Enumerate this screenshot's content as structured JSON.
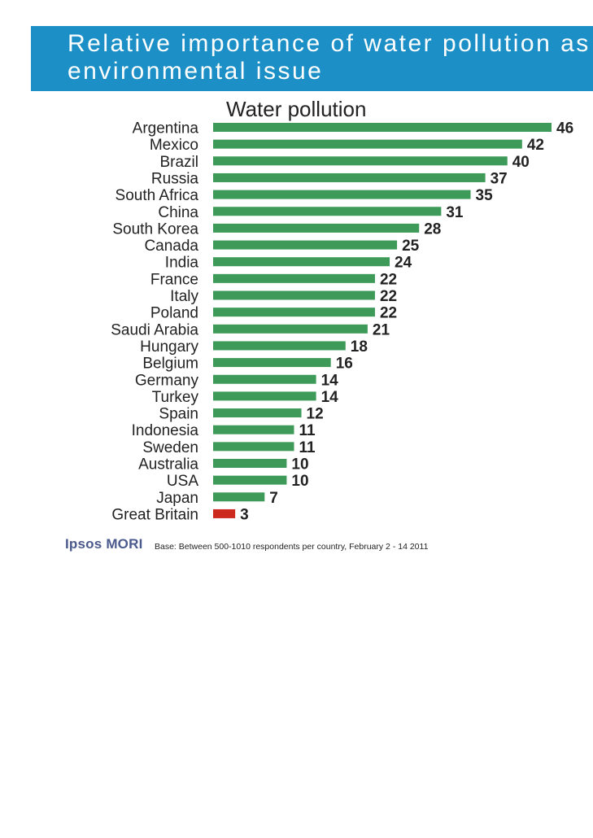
{
  "header": {
    "title": "Relative importance of water pollution as an\nenvironmental issue",
    "banner_color": "#1b8fc6"
  },
  "chart_data": {
    "type": "bar",
    "orientation": "horizontal",
    "title": "Water pollution",
    "categories": [
      "Argentina",
      "Mexico",
      "Brazil",
      "Russia",
      "South Africa",
      "China",
      "South Korea",
      "Canada",
      "India",
      "France",
      "Italy",
      "Poland",
      "Saudi Arabia",
      "Hungary",
      "Belgium",
      "Germany",
      "Turkey",
      "Spain",
      "Indonesia",
      "Sweden",
      "Australia",
      "USA",
      "Japan",
      "Great Britain"
    ],
    "values": [
      46,
      42,
      40,
      37,
      35,
      31,
      28,
      25,
      24,
      22,
      22,
      22,
      21,
      18,
      16,
      14,
      14,
      12,
      11,
      11,
      10,
      10,
      7,
      3
    ],
    "highlight": "Great Britain",
    "colors": {
      "bar": "#3d9a58",
      "highlight": "#cc2a1e"
    },
    "xlim": [
      0,
      46
    ],
    "xlabel": "",
    "ylabel": "",
    "grid": false
  },
  "footer": {
    "logo": "Ipsos MORI",
    "base_note": "Base: Between 500-1010 respondents per country, February 2 - 14 2011"
  }
}
